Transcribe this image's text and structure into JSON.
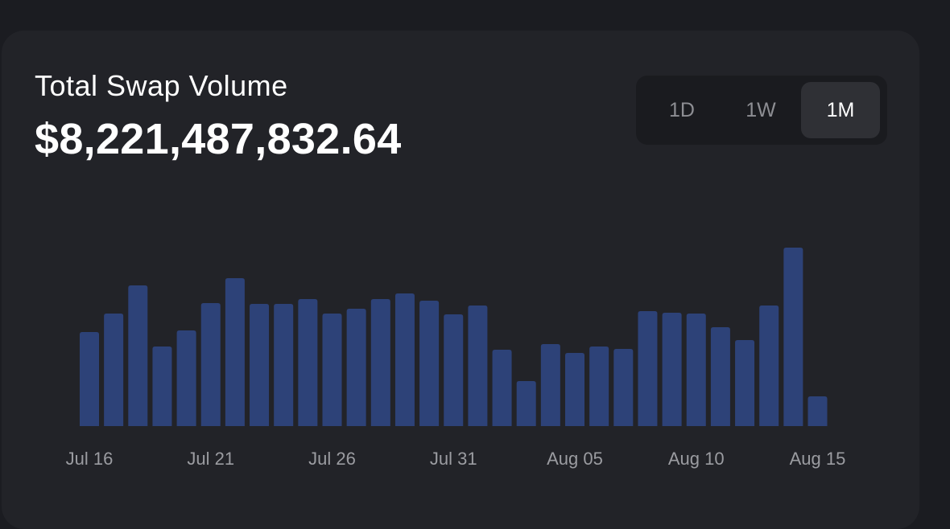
{
  "card": {
    "title": "Total Swap Volume",
    "total_value": "$8,221,487,832.64"
  },
  "range_selector": {
    "options": [
      "1D",
      "1W",
      "1M"
    ],
    "selected": "1M"
  },
  "colors": {
    "page_background": "#1b1c21",
    "card_background": "#222328",
    "bar": "#2d4278",
    "axis_text": "#9b9ca1",
    "selected_option_bg": "#2f3035"
  },
  "chart_data": {
    "type": "bar",
    "title": "",
    "xlabel": "",
    "ylabel": "",
    "grid": false,
    "legend": "none",
    "x_tick_labels": [
      "Jul 16",
      "Jul 21",
      "Jul 26",
      "Jul 31",
      "Aug 05",
      "Aug 10",
      "Aug 15"
    ],
    "categories": [
      "Jul 16",
      "Jul 17",
      "Jul 18",
      "Jul 19",
      "Jul 20",
      "Jul 21",
      "Jul 22",
      "Jul 23",
      "Jul 24",
      "Jul 25",
      "Jul 26",
      "Jul 27",
      "Jul 28",
      "Jul 29",
      "Jul 30",
      "Jul 31",
      "Aug 01",
      "Aug 02",
      "Aug 03",
      "Aug 04",
      "Aug 05",
      "Aug 06",
      "Aug 07",
      "Aug 08",
      "Aug 09",
      "Aug 10",
      "Aug 11",
      "Aug 12",
      "Aug 13",
      "Aug 14",
      "Aug 15"
    ],
    "values": [
      117,
      140,
      175,
      99,
      119,
      153,
      184,
      152,
      152,
      158,
      140,
      146,
      158,
      165,
      156,
      139,
      150,
      95,
      56,
      102,
      91,
      99,
      96,
      143,
      141,
      140,
      123,
      107,
      150,
      222,
      37
    ],
    "ylim": [
      0,
      222
    ]
  }
}
